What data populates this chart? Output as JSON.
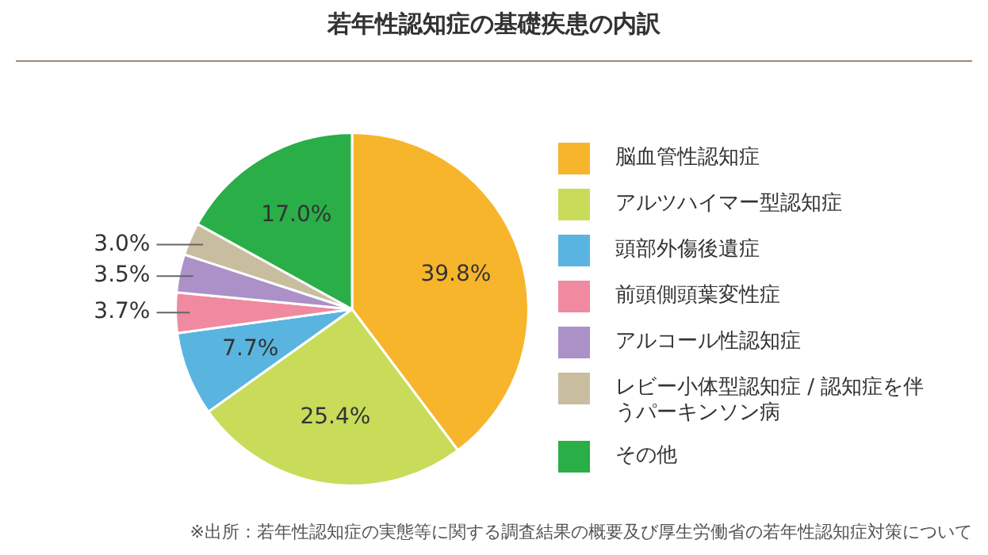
{
  "chart_data": {
    "type": "pie",
    "title": "若年性認知症の基礎疾患の内訳",
    "categories": [
      "脳血管性認知症",
      "アルツハイマー型認知症",
      "頭部外傷後遺症",
      "前頭側頭葉変性症",
      "アルコール性認知症",
      "レビー小体型認知症 / 認知症を伴うパーキンソン病",
      "その他"
    ],
    "values": [
      39.8,
      25.4,
      7.7,
      3.7,
      3.5,
      3.0,
      17.0
    ],
    "colors": [
      "#f7b52c",
      "#c8dc5a",
      "#5ab4e0",
      "#ef8aa0",
      "#ab91c8",
      "#c9bda0",
      "#2aae48"
    ],
    "value_labels": [
      "39.8%",
      "25.4%",
      "7.7%",
      "3.7%",
      "3.5%",
      "3.0%",
      "17.0%"
    ],
    "legend": "right",
    "annotations": [
      "※出所：若年性認知症の実態等に関する調査結果の概要及び厚生労働省の若年性認知症対策について"
    ]
  }
}
